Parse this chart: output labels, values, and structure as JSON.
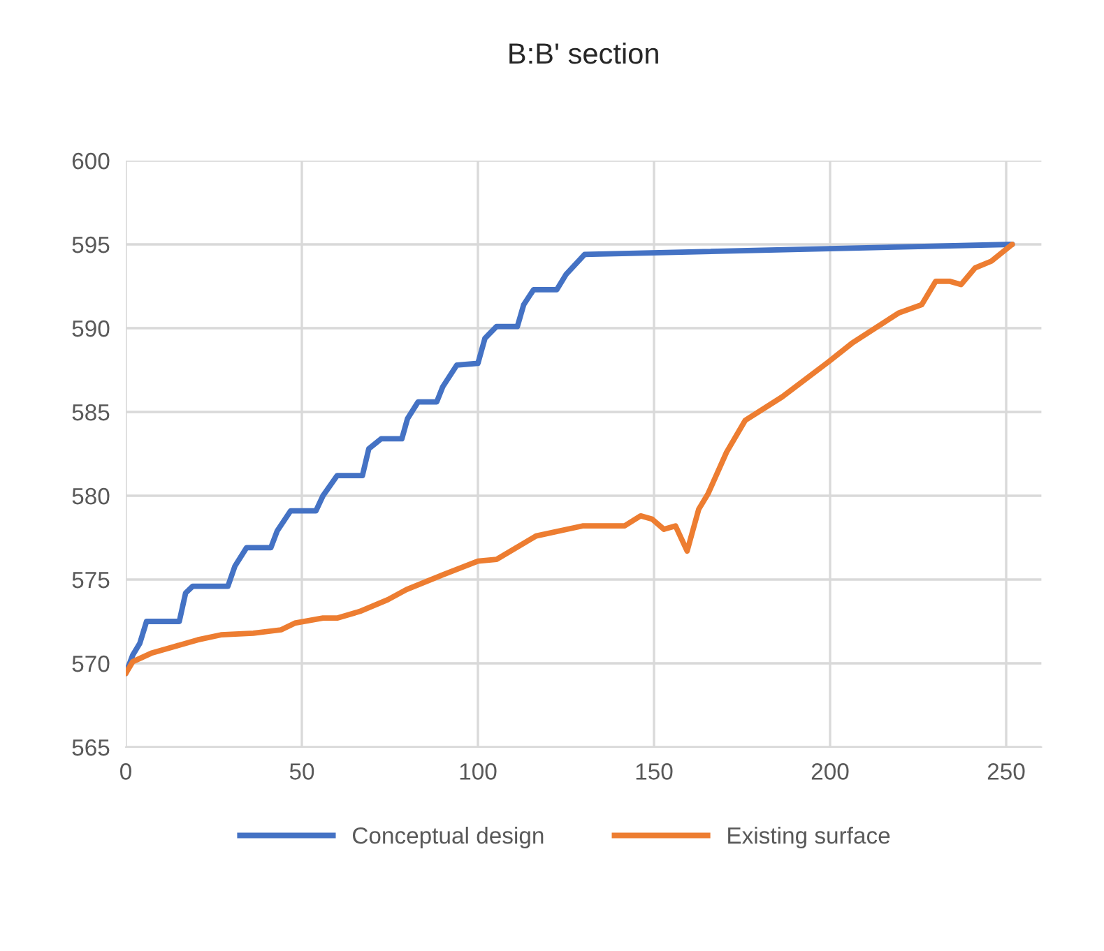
{
  "chart_data": {
    "type": "line",
    "title": "B:B' section",
    "xlim": [
      0,
      260
    ],
    "xticks": [
      0,
      50,
      100,
      150,
      200,
      250
    ],
    "ylim": [
      565,
      600
    ],
    "yticks": [
      565,
      570,
      575,
      580,
      585,
      590,
      595,
      600
    ],
    "grid": true,
    "legend": "bottom",
    "marker": "none",
    "line_style": "solid",
    "series": [
      {
        "name": "Conceptual design",
        "color": "#4472c4",
        "x": [
          0,
          2,
          4,
          5.9,
          15.2,
          17,
          19,
          29,
          31,
          34.3,
          41.2,
          43,
          46.8,
          54,
          56,
          60,
          67.2,
          69,
          72.5,
          78.4,
          80,
          83,
          88.3,
          90,
          94,
          100,
          102,
          105.3,
          111.2,
          113,
          115.8,
          122.4,
          125,
          130.3,
          251.7
        ],
        "values": [
          569.4,
          570.5,
          571.2,
          572.5,
          572.5,
          574.2,
          574.6,
          574.6,
          575.8,
          576.9,
          576.9,
          577.9,
          579.1,
          579.1,
          580.0,
          581.2,
          581.2,
          582.8,
          583.4,
          583.4,
          584.6,
          585.6,
          585.6,
          586.5,
          587.8,
          587.9,
          589.4,
          590.1,
          590.1,
          591.4,
          592.3,
          592.3,
          593.2,
          594.4,
          595.0
        ]
      },
      {
        "name": "Existing surface",
        "color": "#ed7d31",
        "x": [
          0,
          2,
          7.2,
          13.8,
          20.4,
          27,
          36.2,
          44.1,
          48,
          56,
          60,
          66.5,
          74.4,
          79.7,
          90.2,
          100,
          105.3,
          116.5,
          129.7,
          141.6,
          146.2,
          149.5,
          152.8,
          156.1,
          159.4,
          162.7,
          165.3,
          170.6,
          175.9,
          186.4,
          199.6,
          206.2,
          212.8,
          219.4,
          226,
          230,
          233.9,
          237.2,
          241.2,
          245.8,
          251.7
        ],
        "values": [
          569.4,
          570.1,
          570.6,
          571.0,
          571.4,
          571.7,
          571.8,
          572.0,
          572.4,
          572.7,
          572.7,
          573.1,
          573.8,
          574.4,
          575.3,
          576.1,
          576.2,
          577.6,
          578.2,
          578.2,
          578.8,
          578.6,
          578.0,
          578.2,
          576.7,
          579.2,
          580.1,
          582.6,
          584.5,
          585.9,
          588.0,
          589.1,
          590.0,
          590.9,
          591.4,
          592.8,
          592.8,
          592.6,
          593.6,
          594.0,
          595.0
        ]
      }
    ]
  }
}
